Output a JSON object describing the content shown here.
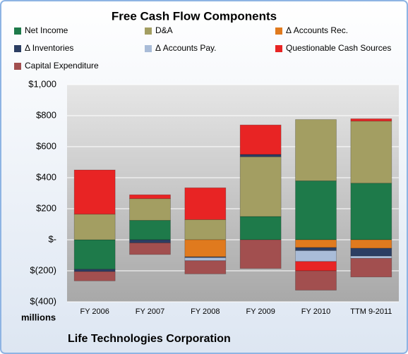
{
  "chart_data": {
    "type": "stacked_bar",
    "title": "Free Cash Flow Components",
    "y_unit_label": "millions",
    "footer": "Life Technologies Corporation",
    "categories": [
      "FY 2006",
      "FY 2007",
      "FY 2008",
      "FY 2009",
      "FY 2010",
      "TTM 9-2011"
    ],
    "series": [
      {
        "name": "Net Income",
        "color": "#1e7a4a",
        "values": [
          -190,
          125,
          0,
          150,
          380,
          365
        ]
      },
      {
        "name": "D&A",
        "color": "#a39e62",
        "values": [
          165,
          140,
          130,
          385,
          395,
          400
        ]
      },
      {
        "name": "Δ Accounts Rec.",
        "color": "#e07a1e",
        "values": [
          0,
          0,
          -110,
          0,
          -50,
          -55
        ]
      },
      {
        "name": "Δ Inventories",
        "color": "#2c3e63",
        "values": [
          -15,
          -20,
          -5,
          15,
          -20,
          -50
        ]
      },
      {
        "name": "Δ Accounts Pay.",
        "color": "#a9bcd8",
        "values": [
          0,
          0,
          -20,
          0,
          -70,
          -15
        ]
      },
      {
        "name": "Questionable Cash Sources",
        "color": "#e82424",
        "values": [
          285,
          25,
          205,
          190,
          -60,
          15
        ]
      },
      {
        "name": "Capital Expenditure",
        "color": "#a24f4f",
        "values": [
          -60,
          -75,
          -85,
          -185,
          -125,
          -120
        ]
      }
    ],
    "ylim": [
      -400,
      1000
    ],
    "yticks": [
      {
        "value": -400,
        "label": "$(400)"
      },
      {
        "value": -200,
        "label": "$(200)"
      },
      {
        "value": 0,
        "label": "$-"
      },
      {
        "value": 200,
        "label": "$200"
      },
      {
        "value": 400,
        "label": "$400"
      },
      {
        "value": 600,
        "label": "$600"
      },
      {
        "value": 800,
        "label": "$800"
      },
      {
        "value": 1000,
        "label": "$1,000"
      }
    ],
    "grid": true
  }
}
